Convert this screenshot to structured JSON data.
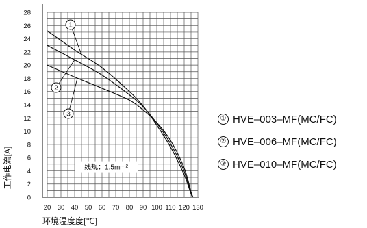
{
  "chart_data": {
    "type": "line",
    "title": "",
    "xlabel": "环境温度度[℃]",
    "ylabel": "工作电流[A]",
    "xlim": [
      20,
      130
    ],
    "ylim": [
      0,
      28
    ],
    "x_ticks": [
      "20",
      "30",
      "40",
      "50",
      "60",
      "70",
      "80",
      "90",
      "100",
      "110",
      "120",
      "130"
    ],
    "y_ticks": [
      "0",
      "2",
      "4",
      "6",
      "8",
      "10",
      "12",
      "14",
      "16",
      "18",
      "20",
      "22",
      "24",
      "26",
      "28"
    ],
    "grid": true,
    "annotation": {
      "text": "线规：1.5mm²",
      "x": 63,
      "y": 4.5
    },
    "series": [
      {
        "marker": "①",
        "name": "HVE–003–MF(MC/FC)",
        "x": [
          20,
          40,
          60,
          80,
          90,
          100,
          110,
          120,
          125,
          126.5
        ],
        "y": [
          25.2,
          22.3,
          19.6,
          16.0,
          13.8,
          10.9,
          7.6,
          3.4,
          0.5,
          0
        ]
      },
      {
        "marker": "②",
        "name": "HVE–006–MF(MC/FC)",
        "x": [
          20,
          40,
          60,
          80,
          90,
          100,
          110,
          120,
          125,
          126.5
        ],
        "y": [
          23.0,
          20.8,
          18.5,
          15.5,
          13.7,
          11.2,
          8.1,
          3.9,
          0.6,
          0
        ]
      },
      {
        "marker": "③",
        "name": "HVE–010–MF(MC/FC)",
        "x": [
          20,
          40,
          60,
          80,
          90,
          100,
          110,
          120,
          125,
          126.5
        ],
        "y": [
          20.0,
          18.2,
          16.5,
          14.7,
          13.2,
          11.3,
          8.6,
          4.4,
          0.8,
          0
        ]
      }
    ]
  }
}
